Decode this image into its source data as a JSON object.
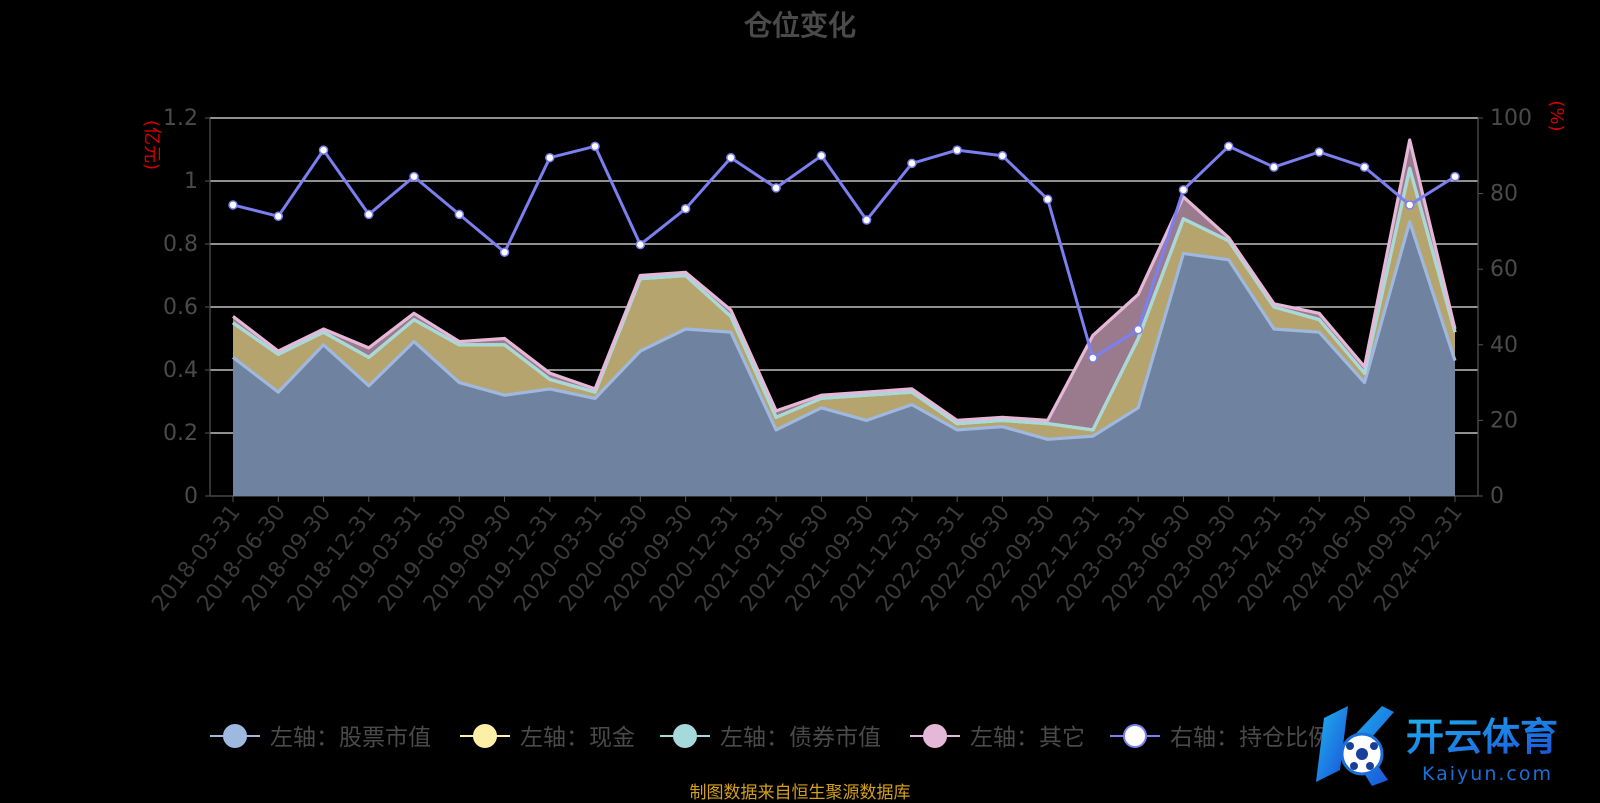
{
  "title": "仓位变化",
  "footer": "制图数据来自恒生聚源数据库",
  "watermark": {
    "text": "开云体育",
    "subtext": "Kaiyun.com"
  },
  "chart_data": {
    "type": "area",
    "categories": [
      "2018-03-31",
      "2018-06-30",
      "2018-09-30",
      "2018-12-31",
      "2019-03-31",
      "2019-06-30",
      "2019-09-30",
      "2019-12-31",
      "2020-03-31",
      "2020-06-30",
      "2020-09-30",
      "2020-12-31",
      "2021-03-31",
      "2021-06-30",
      "2021-09-30",
      "2021-12-31",
      "2022-03-31",
      "2022-06-30",
      "2022-09-30",
      "2022-12-31",
      "2023-03-31",
      "2023-06-30",
      "2023-09-30",
      "2023-12-31",
      "2024-03-31",
      "2024-06-30",
      "2024-09-30",
      "2024-12-31"
    ],
    "left_axis": {
      "label": "(亿元)",
      "ylim": [
        0,
        1.2
      ],
      "ticks": [
        "0",
        "0.2",
        "0.4",
        "0.6",
        "0.8",
        "1",
        "1.2"
      ]
    },
    "right_axis": {
      "label": "(%)",
      "ylim": [
        0,
        100
      ],
      "ticks": [
        "0",
        "20",
        "40",
        "60",
        "80",
        "100"
      ]
    },
    "stacked_series": [
      {
        "name": "左轴：股票市值",
        "color": "#9fb8e0",
        "values": [
          0.44,
          0.33,
          0.48,
          0.35,
          0.49,
          0.36,
          0.32,
          0.34,
          0.31,
          0.46,
          0.53,
          0.52,
          0.21,
          0.28,
          0.24,
          0.29,
          0.21,
          0.22,
          0.18,
          0.19,
          0.28,
          0.77,
          0.75,
          0.53,
          0.52,
          0.36,
          0.87,
          0.43
        ]
      },
      {
        "name": "左轴：现金",
        "color": "#fdf0a6",
        "values": [
          0.11,
          0.12,
          0.04,
          0.09,
          0.07,
          0.12,
          0.16,
          0.03,
          0.02,
          0.23,
          0.17,
          0.05,
          0.04,
          0.03,
          0.08,
          0.04,
          0.02,
          0.02,
          0.05,
          0.02,
          0.22,
          0.11,
          0.06,
          0.07,
          0.04,
          0.03,
          0.17,
          0.09
        ]
      },
      {
        "name": "左轴：债券市值",
        "color": "#a6d9dc",
        "values": [
          0,
          0,
          0,
          0,
          0,
          0,
          0,
          0,
          0,
          0,
          0,
          0,
          0,
          0,
          0,
          0,
          0,
          0,
          0,
          0,
          0,
          0,
          0,
          0,
          0,
          0,
          0,
          0
        ]
      },
      {
        "name": "左轴：其它",
        "color": "#e6b8d7",
        "values": [
          0.02,
          0.01,
          0.01,
          0.03,
          0.02,
          0.01,
          0.02,
          0.02,
          0.01,
          0.01,
          0.01,
          0.02,
          0.02,
          0.01,
          0.01,
          0.01,
          0.01,
          0.01,
          0.01,
          0.3,
          0.14,
          0.07,
          0.01,
          0.01,
          0.02,
          0.02,
          0.09,
          0.01
        ]
      }
    ],
    "line_series": {
      "name": "右轴：持仓比例",
      "color": "#7b7ff0",
      "values": [
        77,
        74,
        91.5,
        74.5,
        84.5,
        74.5,
        64.5,
        89.5,
        92.5,
        66.5,
        76,
        89.5,
        81.5,
        90,
        73,
        88,
        91.5,
        90,
        78.5,
        36.5,
        44,
        81,
        92.5,
        87,
        91,
        87,
        77,
        84.5
      ]
    },
    "grid": true,
    "legend_position": "bottom"
  }
}
